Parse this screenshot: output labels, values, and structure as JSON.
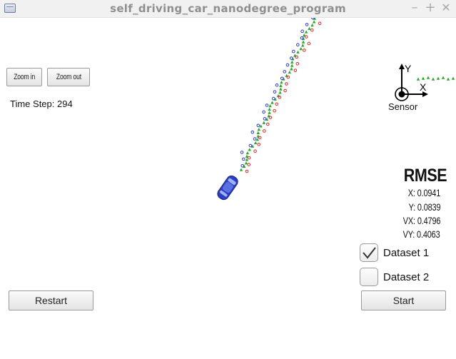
{
  "window": {
    "title": "self_driving_car_nanodegree_program",
    "controls": {
      "minimize": "–",
      "maximize": "+",
      "close": "✕"
    }
  },
  "toolbar": {
    "zoom_in": "Zoom in",
    "zoom_out": "Zoom out"
  },
  "time_step": "Time Step: 294",
  "sensor": {
    "caption": "Sensor",
    "x_label": "X",
    "y_label": "Y"
  },
  "rmse": {
    "title": "RMSE",
    "x": "X: 0.0941",
    "y": "Y: 0.0839",
    "vx": "VX: 0.4796",
    "vy": "VY: 0.4063"
  },
  "datasets": [
    {
      "label": "Dataset 1",
      "checked": true
    },
    {
      "label": "Dataset 2",
      "checked": false
    }
  ],
  "buttons": {
    "restart": "Restart",
    "start": "Start"
  },
  "colors": {
    "car": "#2a3fc2",
    "estimate_marker": "#2aa62a",
    "lidar_marker": "#d42a2a",
    "radar_marker": "#2a3ad4"
  }
}
